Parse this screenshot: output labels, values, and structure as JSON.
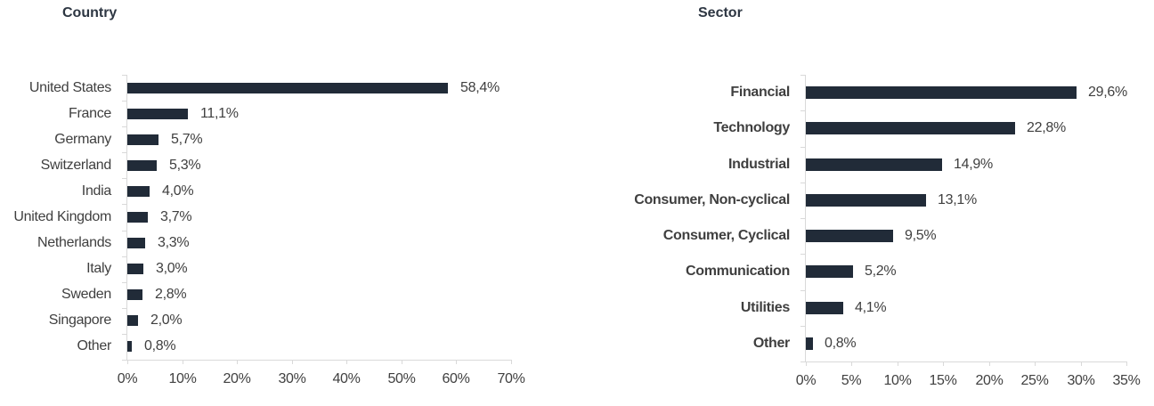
{
  "page": {
    "background": "#ffffff",
    "description": "Two horizontal bar charts showing portfolio breakdown by country and by sector"
  },
  "colors": {
    "bar": "#212b38",
    "axis_line": "#d9d9d9",
    "label_text": "#3f3f3f",
    "tick_text": "#404040",
    "title_text": "#2d3642"
  },
  "chart_data": [
    {
      "type": "bar",
      "orientation": "horizontal",
      "title": "Country",
      "categories": [
        "United States",
        "France",
        "Germany",
        "Switzerland",
        "India",
        "United Kingdom",
        "Netherlands",
        "Italy",
        "Sweden",
        "Singapore",
        "Other"
      ],
      "values": [
        58.4,
        11.1,
        5.7,
        5.3,
        4.0,
        3.7,
        3.3,
        3.0,
        2.8,
        2.0,
        0.8
      ],
      "value_labels": [
        "58,4%",
        "11,1%",
        "5,7%",
        "5,3%",
        "4,0%",
        "3,7%",
        "3,3%",
        "3,0%",
        "2,8%",
        "2,0%",
        "0,8%"
      ],
      "xlim": [
        0,
        70
      ],
      "x_ticks": [
        "0%",
        "10%",
        "20%",
        "30%",
        "40%",
        "50%",
        "60%",
        "70%"
      ],
      "unit": "%",
      "grid": false,
      "legend": "none",
      "category_labels_bold": false
    },
    {
      "type": "bar",
      "orientation": "horizontal",
      "title": "Sector",
      "categories": [
        "Financial",
        "Technology",
        "Industrial",
        "Consumer, Non-cyclical",
        "Consumer, Cyclical",
        "Communication",
        "Utilities",
        "Other"
      ],
      "values": [
        29.6,
        22.8,
        14.9,
        13.1,
        9.5,
        5.2,
        4.1,
        0.8
      ],
      "value_labels": [
        "29,6%",
        "22,8%",
        "14,9%",
        "13,1%",
        "9,5%",
        "5,2%",
        "4,1%",
        "0,8%"
      ],
      "xlim": [
        0,
        35
      ],
      "x_ticks": [
        "0%",
        "5%",
        "10%",
        "15%",
        "20%",
        "25%",
        "30%",
        "35%"
      ],
      "unit": "%",
      "grid": false,
      "legend": "none",
      "category_labels_bold": true
    }
  ]
}
